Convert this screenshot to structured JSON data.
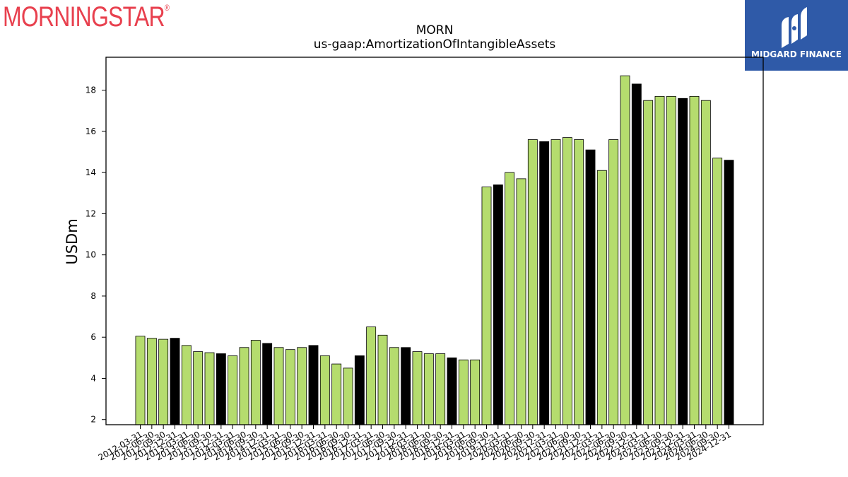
{
  "branding": {
    "morningstar_logo_text": "MORNINGSTAR",
    "morningstar_logo_mark": "®",
    "midgard_text": "MIDGARD FINANCE",
    "morningstar_color": "#e8404e",
    "midgard_bg_color": "#2f5aa8"
  },
  "chart_data": {
    "type": "bar",
    "title": "MORN",
    "subtitle": "us-gaap:AmortizationOfIntangibleAssets",
    "xlabel": "",
    "ylabel": "USDm",
    "ylim": [
      1.75,
      19.6
    ],
    "yticks": [
      2,
      4,
      6,
      8,
      10,
      12,
      14,
      16,
      18
    ],
    "grid": false,
    "colors": {
      "quarter": "#b5dc6e",
      "year_end": "#000000",
      "edge": "#000000"
    },
    "categories": [
      "2012-03-31",
      "2012-06-30",
      "2012-09-30",
      "2012-12-31",
      "2013-03-31",
      "2013-06-30",
      "2013-09-30",
      "2013-12-31",
      "2014-03-31",
      "2014-06-30",
      "2014-09-30",
      "2014-12-31",
      "2015-03-31",
      "2015-06-30",
      "2015-09-30",
      "2015-12-31",
      "2016-03-31",
      "2016-06-30",
      "2016-09-30",
      "2016-12-31",
      "2017-03-31",
      "2017-06-30",
      "2017-09-30",
      "2017-12-31",
      "2018-03-31",
      "2018-06-30",
      "2018-09-30",
      "2018-12-31",
      "2019-03-31",
      "2019-06-30",
      "2019-09-30",
      "2019-12-31",
      "2020-03-31",
      "2020-06-30",
      "2020-09-30",
      "2020-12-31",
      "2021-03-31",
      "2021-06-30",
      "2021-09-30",
      "2021-12-31",
      "2022-03-31",
      "2022-06-30",
      "2022-09-30",
      "2022-12-31",
      "2023-03-31",
      "2023-06-30",
      "2023-09-30",
      "2023-12-31",
      "2024-03-31",
      "2024-06-30",
      "2024-09-30",
      "2024-12-31"
    ],
    "values": [
      6.05,
      5.95,
      5.9,
      5.95,
      5.6,
      5.3,
      5.25,
      5.2,
      5.1,
      5.5,
      5.85,
      5.7,
      5.5,
      5.4,
      5.5,
      5.6,
      5.1,
      4.7,
      4.5,
      5.1,
      6.5,
      6.1,
      5.5,
      5.5,
      5.3,
      5.2,
      5.2,
      5.0,
      4.9,
      4.9,
      13.3,
      13.4,
      14.0,
      13.7,
      15.6,
      15.5,
      15.6,
      15.7,
      15.6,
      15.1,
      14.1,
      15.6,
      18.7,
      18.3,
      17.5,
      17.7,
      17.7,
      17.6,
      17.7,
      17.5,
      14.7,
      14.6
    ],
    "highlight_indices": [
      3,
      7,
      11,
      15,
      19,
      23,
      27,
      31,
      35,
      39,
      43,
      47,
      51
    ]
  }
}
